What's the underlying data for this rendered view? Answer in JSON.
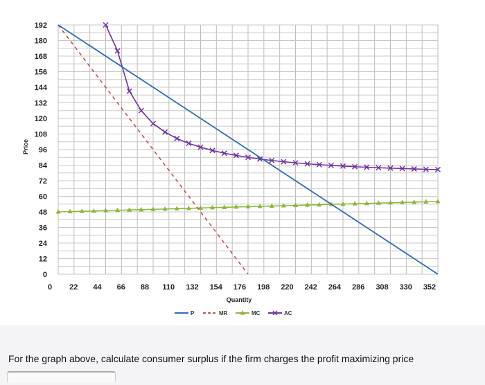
{
  "chart_data": {
    "type": "line",
    "xlabel": "Quantity",
    "ylabel": "Price",
    "xlim": [
      0,
      352
    ],
    "ylim": [
      0,
      192
    ],
    "x_ticks": [
      "0",
      "22",
      "44",
      "66",
      "88",
      "110",
      "132",
      "154",
      "176",
      "198",
      "220",
      "242",
      "264",
      "286",
      "308",
      "330",
      "352"
    ],
    "y_ticks": [
      "0",
      "12",
      "24",
      "36",
      "48",
      "60",
      "72",
      "84",
      "96",
      "108",
      "120",
      "132",
      "144",
      "156",
      "168",
      "180",
      "192"
    ],
    "grid": true,
    "legend": "bottom",
    "series": [
      {
        "name": "P",
        "color": "#2e6bb8",
        "style": "solid",
        "marker": "none",
        "x": [
          0,
          352
        ],
        "y": [
          192,
          0
        ]
      },
      {
        "name": "MR",
        "color": "#c0504d",
        "style": "dashed",
        "marker": "none",
        "x": [
          0,
          176
        ],
        "y": [
          192,
          0
        ]
      },
      {
        "name": "MC",
        "color": "#8fb63b",
        "style": "solid",
        "marker": "triangle",
        "x": [
          0,
          11,
          22,
          33,
          44,
          55,
          66,
          77,
          88,
          99,
          110,
          121,
          132,
          143,
          154,
          165,
          176,
          187,
          198,
          209,
          220,
          231,
          242,
          253,
          264,
          275,
          286,
          297,
          308,
          319,
          330,
          341,
          352
        ],
        "y": [
          48,
          48.2,
          48.5,
          48.7,
          49,
          49.2,
          49.5,
          49.7,
          50,
          50.2,
          50.5,
          50.7,
          51,
          51.3,
          51.5,
          51.8,
          52,
          52.3,
          52.5,
          52.8,
          53,
          53.3,
          53.5,
          53.8,
          54,
          54.3,
          54.5,
          54.8,
          55,
          55.3,
          55.5,
          55.8,
          56
        ]
      },
      {
        "name": "AC",
        "color": "#7030a0",
        "style": "solid",
        "marker": "x",
        "x": [
          44,
          55,
          66,
          77,
          88,
          99,
          110,
          121,
          132,
          143,
          154,
          165,
          176,
          187,
          198,
          209,
          220,
          231,
          242,
          253,
          264,
          275,
          286,
          297,
          308,
          319,
          330,
          341,
          352
        ],
        "y": [
          192,
          172,
          141,
          126,
          116,
          109.5,
          104.5,
          100.8,
          97.8,
          95.3,
          93.2,
          91.5,
          90,
          88.7,
          87.6,
          86.6,
          85.8,
          85,
          84.4,
          83.8,
          83.3,
          82.8,
          82.4,
          82,
          81.7,
          81.4,
          81.1,
          80.8,
          80.6
        ]
      }
    ]
  },
  "question": "For the graph above, calculate consumer surplus if the firm charges the profit maximizing price"
}
